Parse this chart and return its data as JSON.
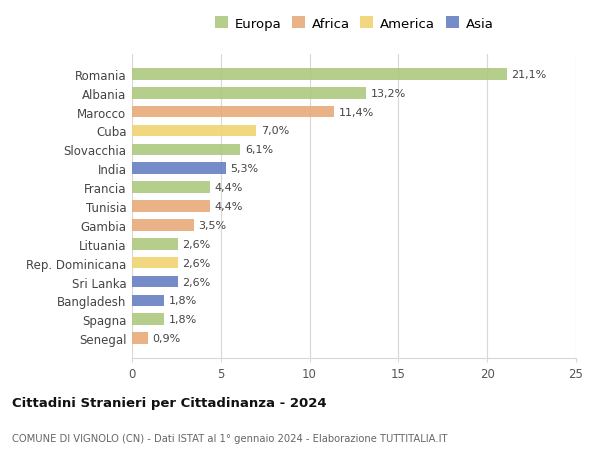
{
  "countries": [
    "Romania",
    "Albania",
    "Marocco",
    "Cuba",
    "Slovacchia",
    "India",
    "Francia",
    "Tunisia",
    "Gambia",
    "Lituania",
    "Rep. Dominicana",
    "Sri Lanka",
    "Bangladesh",
    "Spagna",
    "Senegal"
  ],
  "values": [
    21.1,
    13.2,
    11.4,
    7.0,
    6.1,
    5.3,
    4.4,
    4.4,
    3.5,
    2.6,
    2.6,
    2.6,
    1.8,
    1.8,
    0.9
  ],
  "labels": [
    "21,1%",
    "13,2%",
    "11,4%",
    "7,0%",
    "6,1%",
    "5,3%",
    "4,4%",
    "4,4%",
    "3,5%",
    "2,6%",
    "2,6%",
    "2,6%",
    "1,8%",
    "1,8%",
    "0,9%"
  ],
  "continents": [
    "Europa",
    "Europa",
    "Africa",
    "America",
    "Europa",
    "Asia",
    "Europa",
    "Africa",
    "Africa",
    "Europa",
    "America",
    "Asia",
    "Asia",
    "Europa",
    "Africa"
  ],
  "continent_colors": {
    "Europa": "#adc97e",
    "Africa": "#e8aa7a",
    "America": "#f0d472",
    "Asia": "#6680c4"
  },
  "legend_order": [
    "Europa",
    "Africa",
    "America",
    "Asia"
  ],
  "xlim": [
    0,
    25
  ],
  "xticks": [
    0,
    5,
    10,
    15,
    20,
    25
  ],
  "title": "Cittadini Stranieri per Cittadinanza - 2024",
  "subtitle": "COMUNE DI VIGNOLO (CN) - Dati ISTAT al 1° gennaio 2024 - Elaborazione TUTTITALIA.IT",
  "background_color": "#ffffff",
  "bar_height": 0.62,
  "grid_color": "#d8d8d8"
}
